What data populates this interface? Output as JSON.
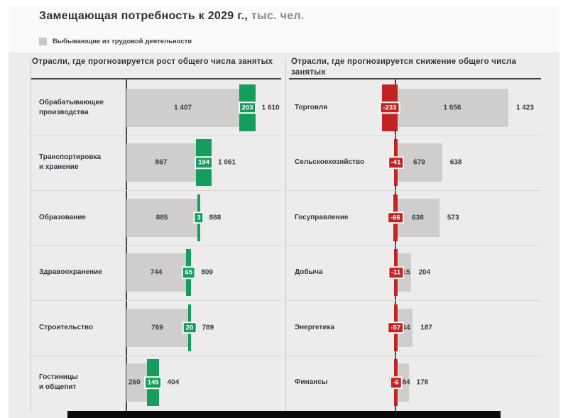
{
  "title": {
    "main": "Замещающая потребность к 2029 г.,",
    "suffix": "тыс. чел."
  },
  "legend": {
    "label": "Выбывающие из трудовой деятельности",
    "swatch_color": "#c9c8c7"
  },
  "colors": {
    "green": "#159d5d",
    "red": "#c32323",
    "bar_gray": "#cfcecd",
    "axis_dark": "#454545",
    "text_dark": "#33363c",
    "text_muted": "#85888d",
    "background_card": "#fafafa",
    "background_chart": "#edecec",
    "separator": "#d9d8d7",
    "bottom_bar": "#0a0a0a"
  },
  "chart_data": [
    {
      "type": "bar",
      "orientation": "horizontal",
      "title": "Отрасли, где прогнозируется рост общего числа занятых",
      "value_unit": "тыс. чел.",
      "gray_series_name": "Выбывающие из трудовой деятельности",
      "rows": [
        {
          "label_lines": [
            "Обрабатывающие",
            "производства"
          ],
          "leaving": 1407,
          "leaving_display": "1 407",
          "change": 203,
          "change_display": "203",
          "total": 1610,
          "total_display": "1 610"
        },
        {
          "label_lines": [
            "Транспортировка",
            "и хранение"
          ],
          "leaving": 867,
          "leaving_display": "867",
          "change": 194,
          "change_display": "194",
          "total": 1061,
          "total_display": "1 061"
        },
        {
          "label_lines": [
            "Образование"
          ],
          "leaving": 885,
          "leaving_display": "885",
          "change": 3,
          "change_display": "3",
          "total": 888,
          "total_display": "888"
        },
        {
          "label_lines": [
            "Здравоохранение"
          ],
          "leaving": 744,
          "leaving_display": "744",
          "change": 65,
          "change_display": "65",
          "total": 809,
          "total_display": "809"
        },
        {
          "label_lines": [
            "Строительство"
          ],
          "leaving": 769,
          "leaving_display": "769",
          "change": 20,
          "change_display": "20",
          "total": 789,
          "total_display": "789"
        },
        {
          "label_lines": [
            "Гостиницы",
            "и общепит"
          ],
          "leaving": 260,
          "leaving_display": "260",
          "change": 145,
          "change_display": "145",
          "total": 404,
          "total_display": "404"
        }
      ]
    },
    {
      "type": "bar",
      "orientation": "horizontal",
      "title": "Отрасли, где прогнозируется снижение общего числа занятых",
      "value_unit": "тыс. чел.",
      "gray_series_name": "Выбывающие из трудовой деятельности",
      "rows": [
        {
          "label_lines": [
            "Торговля"
          ],
          "leaving": 1656,
          "leaving_display": "1 656",
          "change": -233,
          "change_display": "-233",
          "total": 1423,
          "total_display": "1 423"
        },
        {
          "label_lines": [
            "Сельскоехозяйство"
          ],
          "leaving": 679,
          "leaving_display": "679",
          "change": -41,
          "change_display": "-41",
          "total": 638,
          "total_display": "638"
        },
        {
          "label_lines": [
            "Госуправление"
          ],
          "leaving": 638,
          "leaving_display": "638",
          "change": -66,
          "change_display": "-66",
          "total": 573,
          "total_display": "573"
        },
        {
          "label_lines": [
            "Добыча"
          ],
          "leaving": 215,
          "leaving_display": "215",
          "change": -11,
          "change_display": "-11",
          "total": 204,
          "total_display": "204"
        },
        {
          "label_lines": [
            "Энергетика"
          ],
          "leaving": 244,
          "leaving_display": "244",
          "change": -57,
          "change_display": "-57",
          "total": 187,
          "total_display": "187"
        },
        {
          "label_lines": [
            "Финансы"
          ],
          "leaving": 184,
          "leaving_display": "184",
          "change": -6,
          "change_display": "-6",
          "total": 178,
          "total_display": "178"
        }
      ]
    }
  ]
}
